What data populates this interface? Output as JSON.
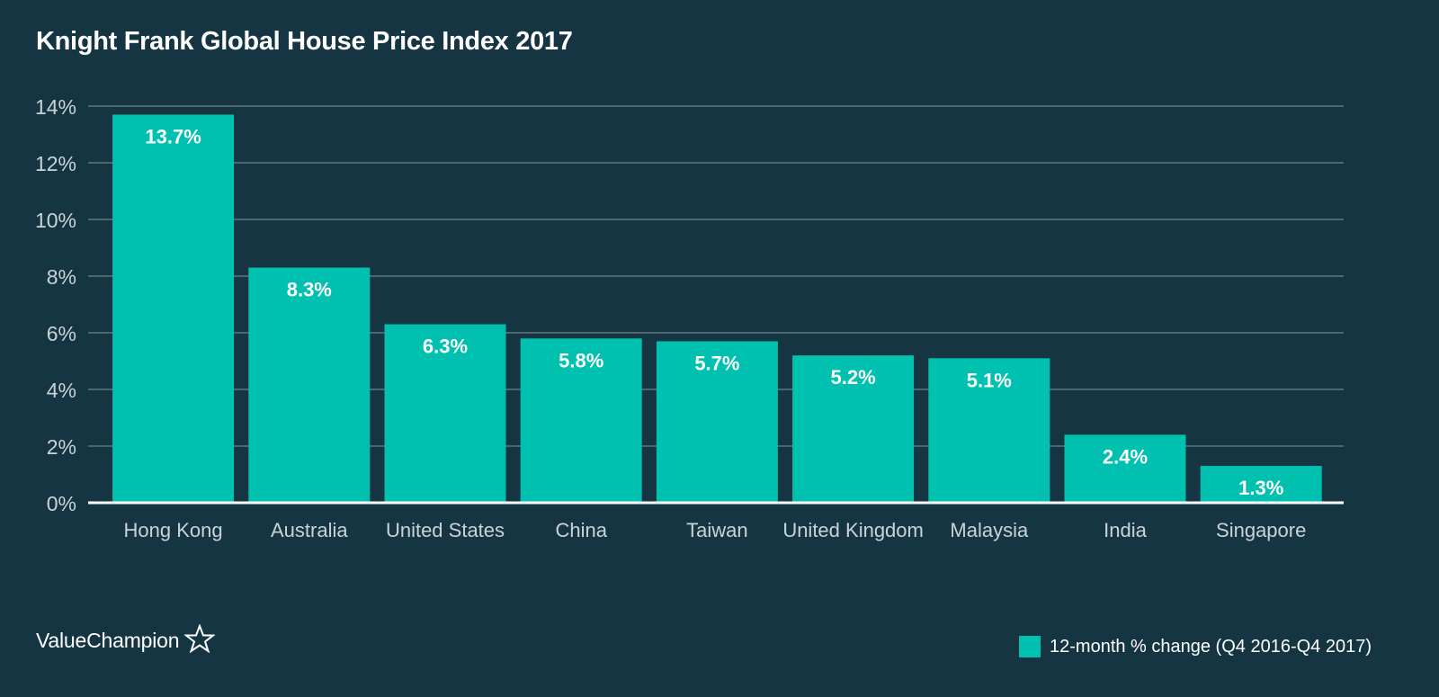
{
  "chart_data": {
    "type": "bar",
    "title": "Knight Frank Global House Price Index 2017",
    "categories": [
      "Hong Kong",
      "Australia",
      "United States",
      "China",
      "Taiwan",
      "United Kingdom",
      "Malaysia",
      "India",
      "Singapore"
    ],
    "series": [
      {
        "name": "12-month % change (Q4 2016-Q4 2017)",
        "values": [
          13.7,
          8.3,
          6.3,
          5.8,
          5.7,
          5.2,
          5.1,
          2.4,
          1.3
        ]
      }
    ],
    "data_labels": [
      "13.7%",
      "8.3%",
      "6.3%",
      "5.8%",
      "5.7%",
      "5.2%",
      "5.1%",
      "2.4%",
      "1.3%"
    ],
    "y_ticks": [
      0,
      2,
      4,
      6,
      8,
      10,
      12,
      14
    ],
    "y_tick_labels": [
      "0%",
      "2%",
      "4%",
      "6%",
      "8%",
      "10%",
      "12%",
      "14%"
    ],
    "ylim": [
      0,
      14
    ],
    "xlabel": "",
    "ylabel": "",
    "grid": true,
    "legend_position": "bottom-right",
    "colors": {
      "background": "#163543",
      "bar": "#00c1b0",
      "grid": "#5f7680",
      "axis": "#ffffff",
      "tick_text": "#c9d3d8",
      "label_text": "#ffffff"
    }
  },
  "brand": {
    "name": "ValueChampion",
    "icon": "star-outline-icon"
  }
}
